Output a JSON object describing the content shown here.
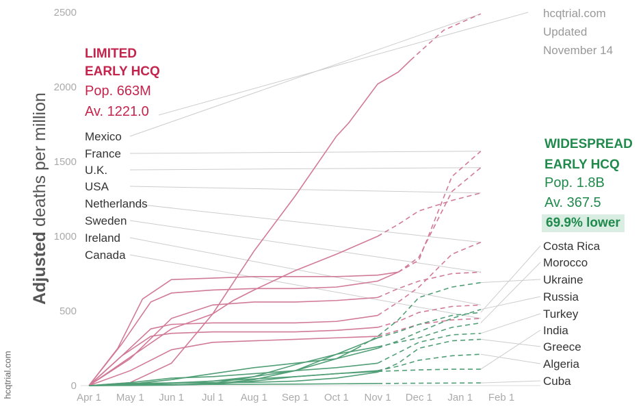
{
  "source_side": "hcqtrial.com",
  "source": {
    "site": "hcqtrial.com",
    "line2": "Updated",
    "line3": "November 14"
  },
  "limited": {
    "title1": "LIMITED",
    "title2": "EARLY HCQ",
    "pop": "Pop. 663M",
    "avg": "Av. 1221.0",
    "countries": [
      "Mexico",
      "France",
      "U.K.",
      "USA",
      "Netherlands",
      "Sweden",
      "Ireland",
      "Canada"
    ]
  },
  "widespread": {
    "title1": "WIDESPREAD",
    "title2": "EARLY HCQ",
    "pop": "Pop. 1.8B",
    "avg": "Av. 367.5",
    "lower": "69.9% lower",
    "countries": [
      "Costa Rica",
      "Morocco",
      "Ukraine",
      "Russia",
      "Turkey",
      "India",
      "Greece",
      "Algeria",
      "Cuba"
    ]
  },
  "colors": {
    "limited": "#c4244c",
    "widespread": "#1f8a4c",
    "limited_line": "#d17a97",
    "widespread_line": "#4f9e76"
  },
  "chart_data": {
    "type": "line",
    "ylabel_bold": "Adjusted",
    "ylabel_rest": " deaths per million",
    "yticks": [
      0,
      500,
      1000,
      1500,
      2000,
      2500
    ],
    "ylim": [
      0,
      2500
    ],
    "xticks": [
      "Apr 1",
      "May 1",
      "Jun 1",
      "Jul 1",
      "Aug 1",
      "Sep 1",
      "Oct 1",
      "Nov 1",
      "Dec 1",
      "Jan 1",
      "Feb 1"
    ],
    "series": [
      {
        "name": "Mexico",
        "group": "limited",
        "x": [
          0,
          1,
          2,
          3,
          4,
          5,
          6,
          6.3,
          7,
          7.5,
          7.8,
          8,
          8.6,
          9.5
        ],
        "y": [
          0,
          20,
          150,
          480,
          900,
          1270,
          1670,
          1760,
          2020,
          2100,
          2180,
          2230,
          2380,
          2490
        ],
        "proj_from": 11
      },
      {
        "name": "France",
        "group": "limited",
        "x": [
          0,
          0.7,
          1.3,
          2,
          3,
          4,
          5,
          6,
          7,
          7.5,
          8,
          8.8,
          9.5
        ],
        "y": [
          0,
          250,
          580,
          710,
          720,
          730,
          730,
          730,
          740,
          760,
          840,
          1400,
          1570
        ],
        "proj_from": 10
      },
      {
        "name": "U.K.",
        "group": "limited",
        "x": [
          0,
          0.8,
          1.5,
          2,
          3,
          4,
          5,
          6,
          7,
          7.5,
          8,
          8.8,
          9.5
        ],
        "y": [
          0,
          280,
          560,
          620,
          640,
          650,
          650,
          660,
          700,
          760,
          860,
          1300,
          1460
        ],
        "proj_from": 10
      },
      {
        "name": "USA",
        "group": "limited",
        "x": [
          0,
          1,
          2,
          3,
          3.5,
          4,
          5,
          6,
          7,
          7.5,
          8,
          8.8,
          9.5
        ],
        "y": [
          0,
          190,
          380,
          480,
          570,
          640,
          770,
          880,
          1000,
          1080,
          1170,
          1240,
          1290
        ],
        "proj_from": 9
      },
      {
        "name": "Netherlands",
        "group": "limited",
        "x": [
          0,
          0.8,
          1.5,
          2,
          3,
          4,
          5,
          6,
          7,
          7.5,
          8,
          8.8,
          9.5
        ],
        "y": [
          0,
          200,
          380,
          410,
          420,
          420,
          420,
          430,
          470,
          560,
          660,
          880,
          960
        ],
        "proj_from": 9
      },
      {
        "name": "Sweden",
        "group": "limited",
        "x": [
          0,
          1,
          2,
          3,
          4,
          5,
          6,
          7,
          7.5,
          8,
          8.8,
          9.5
        ],
        "y": [
          0,
          180,
          450,
          540,
          560,
          560,
          570,
          590,
          650,
          700,
          750,
          760
        ],
        "proj_from": 8
      },
      {
        "name": "Ireland",
        "group": "limited",
        "x": [
          0,
          0.8,
          1.5,
          2,
          3,
          4,
          5,
          6,
          7,
          7.5,
          8,
          8.8,
          9.5
        ],
        "y": [
          0,
          200,
          330,
          350,
          360,
          360,
          360,
          370,
          390,
          430,
          490,
          530,
          540
        ],
        "proj_from": 9
      },
      {
        "name": "Canada",
        "group": "limited",
        "x": [
          0,
          1,
          2,
          3,
          4,
          5,
          6,
          7,
          7.5,
          8,
          8.8,
          9.5
        ],
        "y": [
          0,
          100,
          240,
          290,
          300,
          310,
          320,
          330,
          370,
          410,
          440,
          450
        ],
        "proj_from": 8
      },
      {
        "name": "Costa Rica",
        "group": "widespread",
        "x": [
          0,
          1,
          2,
          3,
          4,
          5,
          6,
          7,
          7.5,
          8,
          8.8,
          9.5
        ],
        "y": [
          0,
          2,
          5,
          10,
          40,
          100,
          210,
          320,
          360,
          410,
          470,
          490
        ],
        "proj_from": 8
      },
      {
        "name": "Morocco",
        "group": "widespread",
        "x": [
          0,
          1,
          2,
          3,
          4,
          5,
          6,
          7,
          7.5,
          8,
          8.8,
          9.5
        ],
        "y": [
          0,
          3,
          5,
          15,
          60,
          140,
          210,
          260,
          290,
          320,
          390,
          420
        ],
        "proj_from": 8
      },
      {
        "name": "Ukraine",
        "group": "widespread",
        "x": [
          0,
          1,
          2,
          3,
          4,
          5,
          6,
          6.5,
          7,
          7.5,
          8,
          8.8,
          9.5
        ],
        "y": [
          0,
          5,
          15,
          30,
          60,
          100,
          180,
          250,
          330,
          440,
          590,
          660,
          690
        ],
        "proj_from": 8
      },
      {
        "name": "Russia",
        "group": "widespread",
        "x": [
          0,
          1,
          2,
          3,
          4,
          5,
          6,
          7,
          7.5,
          8,
          8.8,
          9.5
        ],
        "y": [
          0,
          10,
          40,
          80,
          120,
          150,
          180,
          250,
          300,
          360,
          450,
          510
        ],
        "proj_from": 8
      },
      {
        "name": "Turkey",
        "group": "widespread",
        "x": [
          0,
          1,
          2,
          3,
          4,
          5,
          6,
          7,
          7.5,
          8,
          8.8,
          9.5
        ],
        "y": [
          0,
          20,
          50,
          60,
          80,
          100,
          120,
          150,
          220,
          290,
          340,
          350
        ],
        "proj_from": 8
      },
      {
        "name": "India",
        "group": "widespread",
        "x": [
          0,
          1,
          2,
          3,
          4,
          5,
          6,
          7,
          7.5,
          8,
          8.8,
          9.5
        ],
        "y": [
          0,
          1,
          3,
          10,
          30,
          60,
          80,
          95,
          100,
          105,
          110,
          110
        ],
        "proj_from": 8
      },
      {
        "name": "Greece",
        "group": "widespread",
        "x": [
          0,
          1,
          2,
          3,
          4,
          5,
          6,
          7,
          7.5,
          8,
          8.8,
          9.5
        ],
        "y": [
          0,
          15,
          18,
          20,
          22,
          30,
          50,
          90,
          150,
          250,
          300,
          310
        ],
        "proj_from": 8
      },
      {
        "name": "Algeria",
        "group": "widespread",
        "x": [
          0,
          1,
          2,
          3,
          4,
          5,
          6,
          7,
          7.5,
          8,
          8.8,
          9.5
        ],
        "y": [
          0,
          8,
          18,
          30,
          45,
          60,
          80,
          100,
          130,
          170,
          200,
          210
        ],
        "proj_from": 8
      },
      {
        "name": "Cuba",
        "group": "widespread",
        "x": [
          0,
          1,
          2,
          3,
          4,
          5,
          6,
          7,
          7.5,
          8,
          8.8,
          9.5
        ],
        "y": [
          0,
          3,
          6,
          8,
          9,
          10,
          12,
          14,
          15,
          16,
          17,
          18
        ],
        "proj_from": 8
      }
    ]
  }
}
